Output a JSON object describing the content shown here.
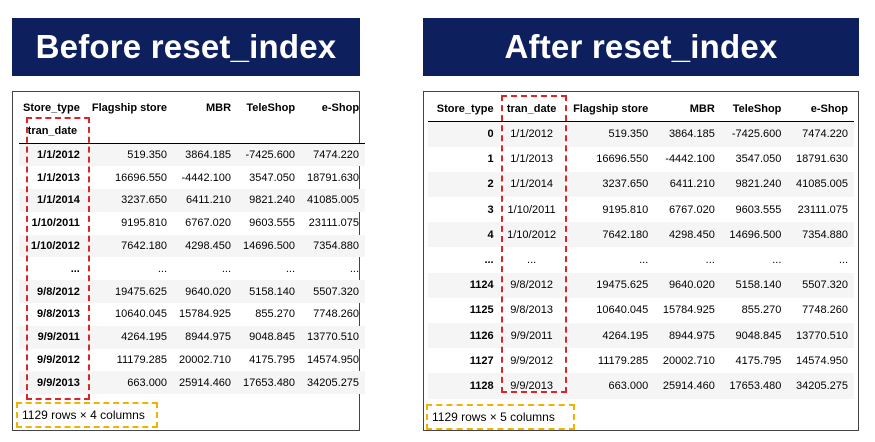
{
  "banners": {
    "left": "Before reset_index",
    "right": "After reset_index"
  },
  "left_table": {
    "header_row1": [
      "Store_type",
      "Flagship store",
      "MBR",
      "TeleShop",
      "e-Shop"
    ],
    "index_name": "tran_date",
    "rows": [
      [
        "1/1/2012",
        "519.350",
        "3864.185",
        "-7425.600",
        "7474.220"
      ],
      [
        "1/1/2013",
        "16696.550",
        "-4442.100",
        "3547.050",
        "18791.630"
      ],
      [
        "1/1/2014",
        "3237.650",
        "6411.210",
        "9821.240",
        "41085.005"
      ],
      [
        "1/10/2011",
        "9195.810",
        "6767.020",
        "9603.555",
        "23111.075"
      ],
      [
        "1/10/2012",
        "7642.180",
        "4298.450",
        "14696.500",
        "7354.880"
      ],
      [
        "...",
        "...",
        "...",
        "...",
        "..."
      ],
      [
        "9/8/2012",
        "19475.625",
        "9640.020",
        "5158.140",
        "5507.320"
      ],
      [
        "9/8/2013",
        "10640.045",
        "15784.925",
        "855.270",
        "7748.260"
      ],
      [
        "9/9/2011",
        "4264.195",
        "8944.975",
        "9048.845",
        "13770.510"
      ],
      [
        "9/9/2012",
        "11179.285",
        "20002.710",
        "4175.795",
        "14574.950"
      ],
      [
        "9/9/2013",
        "663.000",
        "25914.460",
        "17653.480",
        "34205.275"
      ]
    ],
    "footer": "1129 rows × 4 columns"
  },
  "right_table": {
    "header": [
      "Store_type",
      "tran_date",
      "Flagship store",
      "MBR",
      "TeleShop",
      "e-Shop"
    ],
    "rows": [
      [
        "0",
        "1/1/2012",
        "519.350",
        "3864.185",
        "-7425.600",
        "7474.220"
      ],
      [
        "1",
        "1/1/2013",
        "16696.550",
        "-4442.100",
        "3547.050",
        "18791.630"
      ],
      [
        "2",
        "1/1/2014",
        "3237.650",
        "6411.210",
        "9821.240",
        "41085.005"
      ],
      [
        "3",
        "1/10/2011",
        "9195.810",
        "6767.020",
        "9603.555",
        "23111.075"
      ],
      [
        "4",
        "1/10/2012",
        "7642.180",
        "4298.450",
        "14696.500",
        "7354.880"
      ],
      [
        "...",
        "...",
        "...",
        "...",
        "...",
        "..."
      ],
      [
        "1124",
        "9/8/2012",
        "19475.625",
        "9640.020",
        "5158.140",
        "5507.320"
      ],
      [
        "1125",
        "9/8/2013",
        "10640.045",
        "15784.925",
        "855.270",
        "7748.260"
      ],
      [
        "1126",
        "9/9/2011",
        "4264.195",
        "8944.975",
        "9048.845",
        "13770.510"
      ],
      [
        "1127",
        "9/9/2012",
        "11179.285",
        "20002.710",
        "4175.795",
        "14574.950"
      ],
      [
        "1128",
        "9/9/2013",
        "663.000",
        "25914.460",
        "17653.480",
        "34205.275"
      ]
    ],
    "footer": "1129 rows × 5 columns"
  },
  "colors": {
    "banner": "#0d1f5c",
    "highlight": "#d9262b",
    "footer_box": "#f0b400",
    "stripe": "#f5f5f5"
  }
}
